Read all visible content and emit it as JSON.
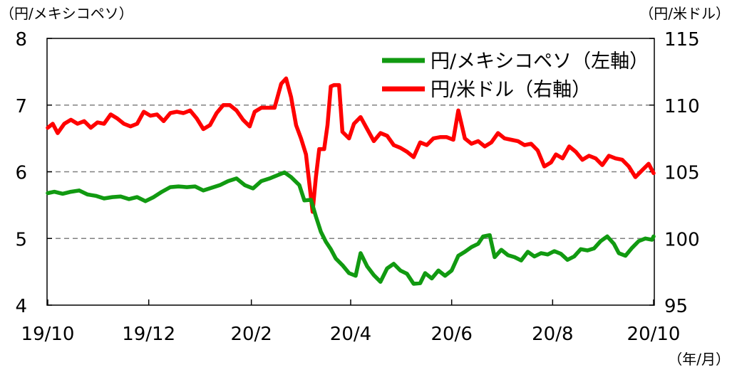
{
  "chart_data": {
    "type": "line",
    "units": {
      "left": "（円/メキシコペソ）",
      "right": "（円/米ドル）",
      "x": "（年/月）"
    },
    "x_ticks": [
      "19/10",
      "19/12",
      "20/2",
      "20/4",
      "20/6",
      "20/8",
      "20/10"
    ],
    "x_range": [
      "2019-10-01",
      "2020-10-01"
    ],
    "y_left": {
      "min": 4,
      "max": 8,
      "ticks": [
        "4",
        "5",
        "6",
        "7",
        "8"
      ]
    },
    "y_right": {
      "min": 95,
      "max": 115,
      "ticks": [
        "95",
        "100",
        "105",
        "110",
        "115"
      ]
    },
    "grid": "dashed horizontal at 5, 6, 7 (left axis)",
    "legend_position": "top-right",
    "series": [
      {
        "name": "円/メキシコペソ（左軸）",
        "axis": "left",
        "color": "#119a11",
        "points": [
          [
            "2019-10-01",
            5.68
          ],
          [
            "2019-10-05",
            5.7
          ],
          [
            "2019-10-10",
            5.67
          ],
          [
            "2019-10-15",
            5.7
          ],
          [
            "2019-10-20",
            5.72
          ],
          [
            "2019-10-25",
            5.66
          ],
          [
            "2019-10-30",
            5.64
          ],
          [
            "2019-11-04",
            5.6
          ],
          [
            "2019-11-09",
            5.62
          ],
          [
            "2019-11-14",
            5.63
          ],
          [
            "2019-11-19",
            5.59
          ],
          [
            "2019-11-24",
            5.62
          ],
          [
            "2019-11-29",
            5.56
          ],
          [
            "2019-12-04",
            5.62
          ],
          [
            "2019-12-09",
            5.7
          ],
          [
            "2019-12-14",
            5.77
          ],
          [
            "2019-12-19",
            5.78
          ],
          [
            "2019-12-24",
            5.77
          ],
          [
            "2019-12-29",
            5.78
          ],
          [
            "2020-01-03",
            5.72
          ],
          [
            "2020-01-08",
            5.76
          ],
          [
            "2020-01-13",
            5.8
          ],
          [
            "2020-01-18",
            5.86
          ],
          [
            "2020-01-23",
            5.9
          ],
          [
            "2020-01-28",
            5.8
          ],
          [
            "2020-02-02",
            5.75
          ],
          [
            "2020-02-07",
            5.86
          ],
          [
            "2020-02-12",
            5.9
          ],
          [
            "2020-02-17",
            5.95
          ],
          [
            "2020-02-21",
            5.99
          ],
          [
            "2020-02-25",
            5.92
          ],
          [
            "2020-03-01",
            5.8
          ],
          [
            "2020-03-04",
            5.57
          ],
          [
            "2020-03-08",
            5.58
          ],
          [
            "2020-03-11",
            5.33
          ],
          [
            "2020-03-14",
            5.1
          ],
          [
            "2020-03-17",
            4.95
          ],
          [
            "2020-03-20",
            4.84
          ],
          [
            "2020-03-23",
            4.7
          ],
          [
            "2020-03-27",
            4.6
          ],
          [
            "2020-03-31",
            4.48
          ],
          [
            "2020-04-04",
            4.44
          ],
          [
            "2020-04-07",
            4.78
          ],
          [
            "2020-04-11",
            4.58
          ],
          [
            "2020-04-15",
            4.45
          ],
          [
            "2020-04-19",
            4.35
          ],
          [
            "2020-04-23",
            4.55
          ],
          [
            "2020-04-27",
            4.62
          ],
          [
            "2020-05-01",
            4.52
          ],
          [
            "2020-05-05",
            4.47
          ],
          [
            "2020-05-09",
            4.32
          ],
          [
            "2020-05-13",
            4.33
          ],
          [
            "2020-05-16",
            4.48
          ],
          [
            "2020-05-20",
            4.4
          ],
          [
            "2020-05-24",
            4.52
          ],
          [
            "2020-05-28",
            4.44
          ],
          [
            "2020-06-01",
            4.52
          ],
          [
            "2020-06-05",
            4.74
          ],
          [
            "2020-06-09",
            4.8
          ],
          [
            "2020-06-13",
            4.87
          ],
          [
            "2020-06-17",
            4.92
          ],
          [
            "2020-06-20",
            5.03
          ],
          [
            "2020-06-24",
            5.05
          ],
          [
            "2020-06-27",
            4.72
          ],
          [
            "2020-07-01",
            4.83
          ],
          [
            "2020-07-05",
            4.75
          ],
          [
            "2020-07-09",
            4.72
          ],
          [
            "2020-07-13",
            4.67
          ],
          [
            "2020-07-17",
            4.8
          ],
          [
            "2020-07-21",
            4.73
          ],
          [
            "2020-07-25",
            4.78
          ],
          [
            "2020-07-29",
            4.76
          ],
          [
            "2020-08-02",
            4.81
          ],
          [
            "2020-08-06",
            4.77
          ],
          [
            "2020-08-10",
            4.68
          ],
          [
            "2020-08-14",
            4.73
          ],
          [
            "2020-08-18",
            4.84
          ],
          [
            "2020-08-22",
            4.82
          ],
          [
            "2020-08-26",
            4.85
          ],
          [
            "2020-08-30",
            4.96
          ],
          [
            "2020-09-03",
            5.03
          ],
          [
            "2020-09-07",
            4.92
          ],
          [
            "2020-09-10",
            4.78
          ],
          [
            "2020-09-14",
            4.74
          ],
          [
            "2020-09-18",
            4.86
          ],
          [
            "2020-09-22",
            4.96
          ],
          [
            "2020-09-26",
            5.0
          ],
          [
            "2020-09-30",
            4.98
          ],
          [
            "2020-10-01",
            5.03
          ]
        ]
      },
      {
        "name": "円/米ドル（右軸）",
        "axis": "right",
        "color": "#ff0000",
        "points": [
          [
            "2019-10-01",
            108.3
          ],
          [
            "2019-10-04",
            108.6
          ],
          [
            "2019-10-07",
            107.9
          ],
          [
            "2019-10-11",
            108.6
          ],
          [
            "2019-10-15",
            108.9
          ],
          [
            "2019-10-19",
            108.6
          ],
          [
            "2019-10-23",
            108.8
          ],
          [
            "2019-10-27",
            108.3
          ],
          [
            "2019-10-31",
            108.7
          ],
          [
            "2019-11-04",
            108.6
          ],
          [
            "2019-11-08",
            109.3
          ],
          [
            "2019-11-12",
            109.0
          ],
          [
            "2019-11-16",
            108.6
          ],
          [
            "2019-11-20",
            108.4
          ],
          [
            "2019-11-24",
            108.6
          ],
          [
            "2019-11-28",
            109.5
          ],
          [
            "2019-12-02",
            109.2
          ],
          [
            "2019-12-06",
            109.3
          ],
          [
            "2019-12-10",
            108.8
          ],
          [
            "2019-12-14",
            109.4
          ],
          [
            "2019-12-18",
            109.5
          ],
          [
            "2019-12-22",
            109.4
          ],
          [
            "2019-12-26",
            109.6
          ],
          [
            "2019-12-30",
            109.0
          ],
          [
            "2020-01-03",
            108.2
          ],
          [
            "2020-01-07",
            108.5
          ],
          [
            "2020-01-11",
            109.4
          ],
          [
            "2020-01-15",
            110.0
          ],
          [
            "2020-01-19",
            110.0
          ],
          [
            "2020-01-23",
            109.6
          ],
          [
            "2020-01-27",
            108.9
          ],
          [
            "2020-01-31",
            108.4
          ],
          [
            "2020-02-03",
            109.5
          ],
          [
            "2020-02-07",
            109.8
          ],
          [
            "2020-02-11",
            109.8
          ],
          [
            "2020-02-15",
            109.8
          ],
          [
            "2020-02-19",
            111.6
          ],
          [
            "2020-02-22",
            112.0
          ],
          [
            "2020-02-25",
            110.6
          ],
          [
            "2020-02-28",
            108.5
          ],
          [
            "2020-03-02",
            107.5
          ],
          [
            "2020-03-05",
            106.3
          ],
          [
            "2020-03-09",
            102.0
          ],
          [
            "2020-03-11",
            104.6
          ],
          [
            "2020-03-13",
            106.7
          ],
          [
            "2020-03-16",
            106.7
          ],
          [
            "2020-03-18",
            108.5
          ],
          [
            "2020-03-20",
            111.4
          ],
          [
            "2020-03-22",
            111.5
          ],
          [
            "2020-03-25",
            111.5
          ],
          [
            "2020-03-27",
            108.0
          ],
          [
            "2020-03-31",
            107.5
          ],
          [
            "2020-04-03",
            108.6
          ],
          [
            "2020-04-07",
            109.1
          ],
          [
            "2020-04-11",
            108.2
          ],
          [
            "2020-04-15",
            107.3
          ],
          [
            "2020-04-19",
            107.9
          ],
          [
            "2020-04-23",
            107.7
          ],
          [
            "2020-04-27",
            107.0
          ],
          [
            "2020-05-01",
            106.8
          ],
          [
            "2020-05-05",
            106.5
          ],
          [
            "2020-05-09",
            106.1
          ],
          [
            "2020-05-13",
            107.2
          ],
          [
            "2020-05-17",
            107.0
          ],
          [
            "2020-05-21",
            107.5
          ],
          [
            "2020-05-25",
            107.6
          ],
          [
            "2020-05-29",
            107.6
          ],
          [
            "2020-06-02",
            107.4
          ],
          [
            "2020-06-05",
            109.6
          ],
          [
            "2020-06-09",
            107.5
          ],
          [
            "2020-06-13",
            107.1
          ],
          [
            "2020-06-17",
            107.3
          ],
          [
            "2020-06-21",
            106.9
          ],
          [
            "2020-06-25",
            107.2
          ],
          [
            "2020-06-29",
            107.9
          ],
          [
            "2020-07-03",
            107.5
          ],
          [
            "2020-07-07",
            107.4
          ],
          [
            "2020-07-11",
            107.3
          ],
          [
            "2020-07-15",
            107.0
          ],
          [
            "2020-07-19",
            107.1
          ],
          [
            "2020-07-23",
            106.6
          ],
          [
            "2020-07-27",
            105.4
          ],
          [
            "2020-07-31",
            105.7
          ],
          [
            "2020-08-03",
            106.3
          ],
          [
            "2020-08-07",
            106.0
          ],
          [
            "2020-08-11",
            106.9
          ],
          [
            "2020-08-15",
            106.5
          ],
          [
            "2020-08-19",
            105.9
          ],
          [
            "2020-08-23",
            106.2
          ],
          [
            "2020-08-27",
            106.0
          ],
          [
            "2020-08-31",
            105.5
          ],
          [
            "2020-09-04",
            106.2
          ],
          [
            "2020-09-08",
            106.0
          ],
          [
            "2020-09-12",
            105.9
          ],
          [
            "2020-09-16",
            105.4
          ],
          [
            "2020-09-20",
            104.6
          ],
          [
            "2020-09-24",
            105.1
          ],
          [
            "2020-09-28",
            105.6
          ],
          [
            "2020-10-01",
            104.9
          ]
        ]
      }
    ]
  }
}
